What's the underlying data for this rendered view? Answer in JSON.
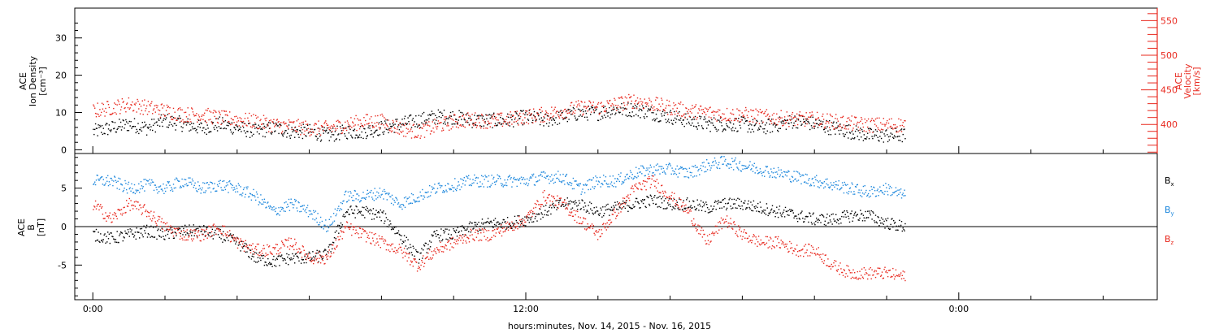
{
  "chart_data": [
    {
      "type": "scatter",
      "panel": "top",
      "left_axis": {
        "label_lines": [
          "ACE",
          "Ion Density",
          "[cm⁻³]"
        ],
        "ylim": [
          -1,
          38
        ],
        "ticks": [
          0,
          10,
          20,
          30
        ],
        "tick_labels": [
          "0",
          "10",
          "20",
          "30"
        ],
        "color": "#000000"
      },
      "right_axis": {
        "label_lines": [
          "ACE",
          "Velocity",
          "[km/s]"
        ],
        "ylim": [
          358,
          568
        ],
        "ticks": [
          400,
          450,
          500,
          550
        ],
        "tick_labels": [
          "400",
          "450",
          "500",
          "550"
        ],
        "color": "#e8281e"
      },
      "series": [
        {
          "key": "density",
          "axis": "left",
          "color": "#000000",
          "points": [
            [
              0.0,
              5
            ],
            [
              0.5,
              6
            ],
            [
              1.0,
              7
            ],
            [
              1.5,
              6
            ],
            [
              2.0,
              8
            ],
            [
              2.5,
              7
            ],
            [
              3.0,
              6
            ],
            [
              3.5,
              7
            ],
            [
              4.0,
              6
            ],
            [
              4.5,
              5
            ],
            [
              5.0,
              6
            ],
            [
              5.5,
              5
            ],
            [
              6.0,
              5
            ],
            [
              6.5,
              4
            ],
            [
              7.0,
              5
            ],
            [
              7.5,
              5
            ],
            [
              8.0,
              6
            ],
            [
              8.5,
              7
            ],
            [
              9.0,
              8
            ],
            [
              9.5,
              9
            ],
            [
              10.0,
              9
            ],
            [
              10.5,
              8
            ],
            [
              11.0,
              8
            ],
            [
              11.5,
              8
            ],
            [
              12.0,
              9
            ],
            [
              12.5,
              8
            ],
            [
              13.0,
              9
            ],
            [
              13.5,
              10
            ],
            [
              14.0,
              10
            ],
            [
              14.5,
              11
            ],
            [
              15.0,
              11
            ],
            [
              15.5,
              10
            ],
            [
              16.0,
              9
            ],
            [
              16.5,
              8
            ],
            [
              17.0,
              7
            ],
            [
              17.5,
              7
            ],
            [
              18.0,
              7
            ],
            [
              18.5,
              6
            ],
            [
              19.0,
              7
            ],
            [
              19.5,
              8
            ],
            [
              20.0,
              7
            ],
            [
              20.5,
              6
            ],
            [
              21.0,
              5
            ],
            [
              21.5,
              4
            ],
            [
              22.0,
              4
            ],
            [
              22.5,
              4
            ]
          ]
        },
        {
          "key": "velocity",
          "axis": "right",
          "color": "#e8281e",
          "points": [
            [
              0.0,
              420
            ],
            [
              0.5,
              425
            ],
            [
              1.0,
              430
            ],
            [
              1.5,
              425
            ],
            [
              2.0,
              420
            ],
            [
              2.5,
              415
            ],
            [
              3.0,
              415
            ],
            [
              3.5,
              410
            ],
            [
              4.0,
              408
            ],
            [
              4.5,
              405
            ],
            [
              5.0,
              400
            ],
            [
              5.5,
              398
            ],
            [
              6.0,
              395
            ],
            [
              6.5,
              395
            ],
            [
              7.0,
              400
            ],
            [
              7.5,
              405
            ],
            [
              8.0,
              405
            ],
            [
              8.5,
              395
            ],
            [
              9.0,
              390
            ],
            [
              9.5,
              398
            ],
            [
              10.0,
              405
            ],
            [
              10.5,
              408
            ],
            [
              11.0,
              405
            ],
            [
              11.5,
              408
            ],
            [
              12.0,
              412
            ],
            [
              12.5,
              415
            ],
            [
              13.0,
              420
            ],
            [
              13.5,
              425
            ],
            [
              14.0,
              425
            ],
            [
              14.5,
              430
            ],
            [
              15.0,
              435
            ],
            [
              15.5,
              430
            ],
            [
              16.0,
              425
            ],
            [
              16.5,
              420
            ],
            [
              17.0,
              418
            ],
            [
              17.5,
              415
            ],
            [
              18.0,
              415
            ],
            [
              18.5,
              412
            ],
            [
              19.0,
              410
            ],
            [
              19.5,
              408
            ],
            [
              20.0,
              408
            ],
            [
              20.5,
              405
            ],
            [
              21.0,
              402
            ],
            [
              21.5,
              400
            ],
            [
              22.0,
              400
            ],
            [
              22.5,
              400
            ]
          ]
        }
      ]
    },
    {
      "type": "scatter",
      "panel": "bottom",
      "left_axis": {
        "label_lines": [
          "ACE",
          "B",
          "[nT]"
        ],
        "ylim": [
          -9.5,
          9.5
        ],
        "ticks": [
          -5,
          0,
          5
        ],
        "tick_labels": [
          "-5",
          "0",
          "5"
        ],
        "color": "#000000"
      },
      "zero_line": true,
      "series": [
        {
          "key": "bx",
          "name": "B",
          "subscript": "x",
          "color": "#000000",
          "points": [
            [
              0.0,
              -1
            ],
            [
              0.5,
              -1.5
            ],
            [
              1.0,
              -1
            ],
            [
              1.5,
              -0.5
            ],
            [
              2.0,
              -1
            ],
            [
              2.5,
              -0.5
            ],
            [
              3.0,
              -0.5
            ],
            [
              3.5,
              -1
            ],
            [
              4.0,
              -2
            ],
            [
              4.5,
              -4
            ],
            [
              5.0,
              -4.5
            ],
            [
              5.5,
              -4
            ],
            [
              6.0,
              -4
            ],
            [
              6.5,
              -3.5
            ],
            [
              7.0,
              2
            ],
            [
              7.5,
              2
            ],
            [
              8.0,
              1.5
            ],
            [
              8.5,
              -1
            ],
            [
              9.0,
              -4
            ],
            [
              9.5,
              -1
            ],
            [
              10.0,
              -1
            ],
            [
              10.5,
              0
            ],
            [
              11.0,
              0.5
            ],
            [
              11.5,
              0.5
            ],
            [
              12.0,
              1
            ],
            [
              12.5,
              2
            ],
            [
              13.0,
              3
            ],
            [
              13.5,
              3
            ],
            [
              14.0,
              2
            ],
            [
              14.5,
              2.5
            ],
            [
              15.0,
              3
            ],
            [
              15.5,
              3.5
            ],
            [
              16.0,
              3
            ],
            [
              16.5,
              3
            ],
            [
              17.0,
              2.5
            ],
            [
              17.5,
              3
            ],
            [
              18.0,
              3
            ],
            [
              18.5,
              2.5
            ],
            [
              19.0,
              2
            ],
            [
              19.5,
              1.5
            ],
            [
              20.0,
              1
            ],
            [
              20.5,
              1
            ],
            [
              21.0,
              1.5
            ],
            [
              21.5,
              1.5
            ],
            [
              22.0,
              0.5
            ],
            [
              22.5,
              0
            ]
          ]
        },
        {
          "key": "by",
          "name": "B",
          "subscript": "y",
          "color": "#1e88dd",
          "points": [
            [
              0.0,
              6
            ],
            [
              0.5,
              6
            ],
            [
              1.0,
              5
            ],
            [
              1.5,
              5.5
            ],
            [
              2.0,
              5
            ],
            [
              2.5,
              6
            ],
            [
              3.0,
              5
            ],
            [
              3.5,
              5.5
            ],
            [
              4.0,
              5
            ],
            [
              4.5,
              4
            ],
            [
              5.0,
              2
            ],
            [
              5.5,
              3
            ],
            [
              6.0,
              2
            ],
            [
              6.5,
              0
            ],
            [
              7.0,
              4
            ],
            [
              7.5,
              4
            ],
            [
              8.0,
              4.5
            ],
            [
              8.5,
              3
            ],
            [
              9.0,
              4
            ],
            [
              9.5,
              5
            ],
            [
              10.0,
              5.5
            ],
            [
              10.5,
              6
            ],
            [
              11.0,
              6
            ],
            [
              11.5,
              6
            ],
            [
              12.0,
              6
            ],
            [
              12.5,
              6.5
            ],
            [
              13.0,
              6.5
            ],
            [
              13.5,
              5
            ],
            [
              14.0,
              6
            ],
            [
              14.5,
              6
            ],
            [
              15.0,
              7
            ],
            [
              15.5,
              7.5
            ],
            [
              16.0,
              7.5
            ],
            [
              16.5,
              7
            ],
            [
              17.0,
              8
            ],
            [
              17.5,
              8.5
            ],
            [
              18.0,
              8
            ],
            [
              18.5,
              7.5
            ],
            [
              19.0,
              7
            ],
            [
              19.5,
              6.5
            ],
            [
              20.0,
              6
            ],
            [
              20.5,
              5.5
            ],
            [
              21.0,
              5
            ],
            [
              21.5,
              4.5
            ],
            [
              22.0,
              5
            ],
            [
              22.5,
              4
            ]
          ]
        },
        {
          "key": "bz",
          "name": "B",
          "subscript": "z",
          "color": "#e8281e",
          "points": [
            [
              0.0,
              3
            ],
            [
              0.5,
              1
            ],
            [
              1.0,
              3
            ],
            [
              1.5,
              2
            ],
            [
              2.0,
              0
            ],
            [
              2.5,
              -1
            ],
            [
              3.0,
              -1
            ],
            [
              3.5,
              0
            ],
            [
              4.0,
              -2
            ],
            [
              4.5,
              -3
            ],
            [
              5.0,
              -3
            ],
            [
              5.5,
              -2
            ],
            [
              6.0,
              -4
            ],
            [
              6.5,
              -4
            ],
            [
              7.0,
              0
            ],
            [
              7.5,
              -1
            ],
            [
              8.0,
              -2
            ],
            [
              8.5,
              -3
            ],
            [
              9.0,
              -5
            ],
            [
              9.5,
              -3
            ],
            [
              10.0,
              -2
            ],
            [
              10.5,
              -1
            ],
            [
              11.0,
              -1
            ],
            [
              11.5,
              0
            ],
            [
              12.0,
              1
            ],
            [
              12.5,
              4
            ],
            [
              13.0,
              3
            ],
            [
              13.5,
              1
            ],
            [
              14.0,
              -1
            ],
            [
              14.5,
              2
            ],
            [
              15.0,
              5
            ],
            [
              15.5,
              6
            ],
            [
              16.0,
              4
            ],
            [
              16.5,
              2
            ],
            [
              17.0,
              -2
            ],
            [
              17.5,
              1
            ],
            [
              18.0,
              -1
            ],
            [
              18.5,
              -2
            ],
            [
              19.0,
              -2
            ],
            [
              19.5,
              -3
            ],
            [
              20.0,
              -3
            ],
            [
              20.5,
              -5
            ],
            [
              21.0,
              -6
            ],
            [
              21.5,
              -6
            ],
            [
              22.0,
              -6
            ],
            [
              22.5,
              -6.5
            ]
          ]
        }
      ],
      "legend": [
        {
          "text": "B",
          "sub": "x",
          "color": "#000000"
        },
        {
          "text": "B",
          "sub": "y",
          "color": "#1e88dd"
        },
        {
          "text": "B",
          "sub": "z",
          "color": "#e8281e"
        }
      ]
    }
  ],
  "x_axis": {
    "range_hours": [
      -0.5,
      29.5
    ],
    "ticks": [
      0,
      12,
      24
    ],
    "tick_labels": [
      "0:00",
      "12:00",
      "0:00"
    ],
    "minor_step_hours": 2,
    "label": "hours:minutes, Nov. 14, 2015 - Nov. 16, 2015"
  },
  "data_end_hour": 22.5
}
